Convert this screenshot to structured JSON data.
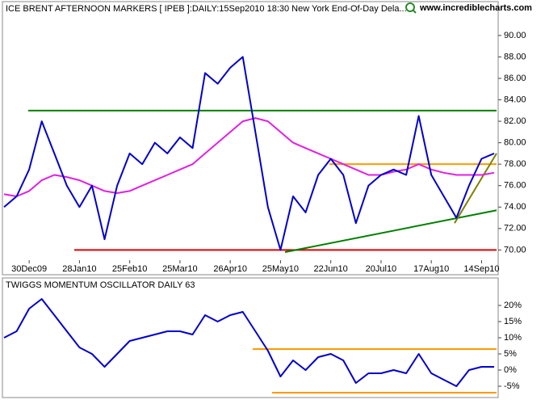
{
  "chart_data": [
    {
      "type": "line",
      "title": "ICE BRENT AFTERNOON MARKERS [ IPEB ]:DAILY:15Sep2010 18:30 New York End-Of-Day Dela...",
      "source": "www.incrediblecharts.com",
      "categories": [
        null,
        null,
        "30Dec09",
        null,
        null,
        null,
        "28Jan10",
        null,
        null,
        null,
        "25Feb10",
        null,
        null,
        null,
        "25Mar10",
        null,
        null,
        null,
        "26Apr10",
        null,
        null,
        null,
        "25May10",
        null,
        null,
        null,
        "22Jun10",
        null,
        null,
        null,
        "20Jul10",
        null,
        null,
        null,
        "17Aug10",
        null,
        null,
        null,
        "14Sep10",
        null
      ],
      "series": [
        {
          "color": "#0000cc",
          "values": [
            74,
            75,
            77.5,
            82,
            79,
            76,
            74,
            76,
            71,
            76,
            79,
            78,
            80,
            79,
            80.5,
            79.5,
            86.5,
            85.5,
            87,
            88,
            81,
            74,
            70,
            75,
            73.5,
            77,
            78.5,
            77,
            72.5,
            76,
            77,
            77.5,
            77,
            82.5,
            77,
            75,
            73,
            76,
            78.5,
            79
          ]
        },
        {
          "color": "#e020e0",
          "values": [
            75.2,
            75,
            75.5,
            76.5,
            77,
            76.8,
            76.5,
            76,
            75.5,
            75.3,
            75.5,
            76,
            76.5,
            77,
            77.5,
            78,
            79,
            80,
            81,
            82,
            82.3,
            82,
            81,
            80,
            79.5,
            79,
            78.5,
            78,
            77.5,
            77,
            77,
            77.3,
            77.5,
            78,
            77.5,
            77.2,
            77,
            77,
            77,
            77.2
          ]
        }
      ],
      "hlines": [
        {
          "value": 83,
          "color": "#008000"
        },
        {
          "value": 70,
          "color": "#e00000"
        },
        {
          "value": 78,
          "color": "#ff9900"
        }
      ],
      "trend_lines": [
        {
          "color": "#008000",
          "values": [
            69.8,
            73.7
          ]
        },
        {
          "color": "#808000",
          "values": [
            72.5,
            79
          ]
        }
      ],
      "ylim": [
        69.2,
        91.8
      ],
      "yticks": [
        {
          "value": 70,
          "label": "70.00"
        },
        {
          "value": 72,
          "label": "72.00"
        },
        {
          "value": 74,
          "label": "74.00"
        },
        {
          "value": 76,
          "label": "76.00"
        },
        {
          "value": 78,
          "label": "78.00"
        },
        {
          "value": 80,
          "label": "80.00"
        },
        {
          "value": 82,
          "label": "82.00"
        },
        {
          "value": 84,
          "label": "84.00"
        },
        {
          "value": 86,
          "label": "86.00"
        },
        {
          "value": 88,
          "label": "88.00"
        },
        {
          "value": 90,
          "label": "90.00"
        }
      ]
    },
    {
      "type": "line",
      "title": "TWIGGS MOMENTUM OSCILLATOR DAILY 63",
      "series": [
        {
          "color": "#0000cc",
          "values": [
            10,
            12,
            19,
            22,
            17,
            12,
            7,
            5,
            1,
            5,
            9,
            10,
            11,
            12,
            12,
            11,
            17,
            15,
            17,
            18,
            12,
            6,
            -2,
            3,
            0,
            4,
            5,
            3,
            -4,
            -1,
            -1,
            0,
            -1,
            5,
            -1,
            -3,
            -5,
            0,
            1,
            1
          ]
        }
      ],
      "hlines": [
        {
          "value": 6.5,
          "color": "#ff9900"
        },
        {
          "value": -7,
          "color": "#ff9900"
        }
      ],
      "ylim": [
        -8,
        24
      ],
      "yticks": [
        {
          "value": 20,
          "label": "20%"
        },
        {
          "value": 15,
          "label": "15%"
        },
        {
          "value": 10,
          "label": "10%"
        },
        {
          "value": 5,
          "label": "5%"
        },
        {
          "value": 0,
          "label": "0%"
        },
        {
          "value": -5,
          "label": "-5%"
        }
      ]
    }
  ]
}
